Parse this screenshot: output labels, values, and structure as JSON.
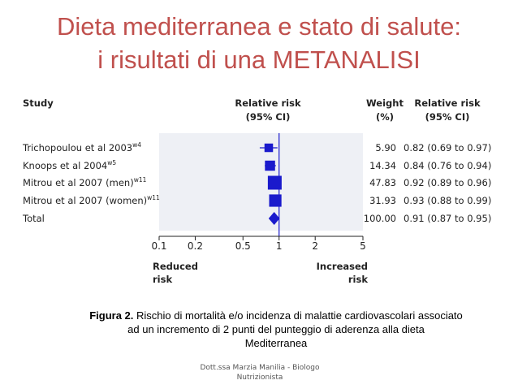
{
  "slide": {
    "title_line1": "Dieta mediterranea e stato di salute:",
    "title_line2": "i risultati di una METANALISI",
    "caption_label": "Figura 2.",
    "caption_first": "Rischio di mortalità e/o incidenza di malattie cardiovascolari associato",
    "caption_second": "ad un incremento di 2 punti del punteggio di aderenza alla dieta",
    "caption_third": "Mediterranea",
    "footer_line1": "Dott.ssa Marzia Manilia - Biologo",
    "footer_line2": "Nutrizionista"
  },
  "colors": {
    "title": "#c0504d",
    "marker": "#1a1acc",
    "shade": "#eef0f5",
    "refline": "#1a1acc"
  },
  "chart_data": {
    "type": "forest",
    "scale": "log",
    "headers": {
      "study": "Study",
      "rr_line1": "Relative risk",
      "rr_line2": "(95% CI)",
      "weight_line1": "Weight",
      "weight_line2": "(%)",
      "ci_line1": "Relative risk",
      "ci_line2": "(95% CI)"
    },
    "studies": [
      {
        "name": "Trichopoulou et al 2003",
        "sup": "w4",
        "rr": 0.82,
        "lo": 0.69,
        "hi": 0.97,
        "weight": "5.90",
        "ci_text": "0.82 (0.69 to 0.97)"
      },
      {
        "name": "Knoops et al 2004",
        "sup": "w5",
        "rr": 0.84,
        "lo": 0.76,
        "hi": 0.94,
        "weight": "14.34",
        "ci_text": "0.84 (0.76 to 0.94)"
      },
      {
        "name": "Mitrou et al 2007 (men)",
        "sup": "w11",
        "rr": 0.92,
        "lo": 0.89,
        "hi": 0.96,
        "weight": "47.83",
        "ci_text": "0.92 (0.89 to 0.96)"
      },
      {
        "name": "Mitrou et al 2007 (women)",
        "sup": "w11",
        "rr": 0.93,
        "lo": 0.88,
        "hi": 0.99,
        "weight": "31.93",
        "ci_text": "0.93 (0.88 to 0.99)"
      }
    ],
    "total": {
      "name": "Total",
      "rr": 0.91,
      "lo": 0.87,
      "hi": 0.95,
      "weight": "100.00",
      "ci_text": "0.91 (0.87 to 0.95)"
    },
    "x_ticks": [
      0.1,
      0.2,
      0.5,
      1,
      2,
      5
    ],
    "x_tick_labels": [
      "0.1",
      "0.2",
      "0.5",
      "1",
      "2",
      "5"
    ],
    "xlim": [
      0.1,
      5
    ],
    "reference_line": 1,
    "left_label_line1": "Reduced",
    "left_label_line2": "risk",
    "right_label_line1": "Increased",
    "right_label_line2": "risk"
  }
}
